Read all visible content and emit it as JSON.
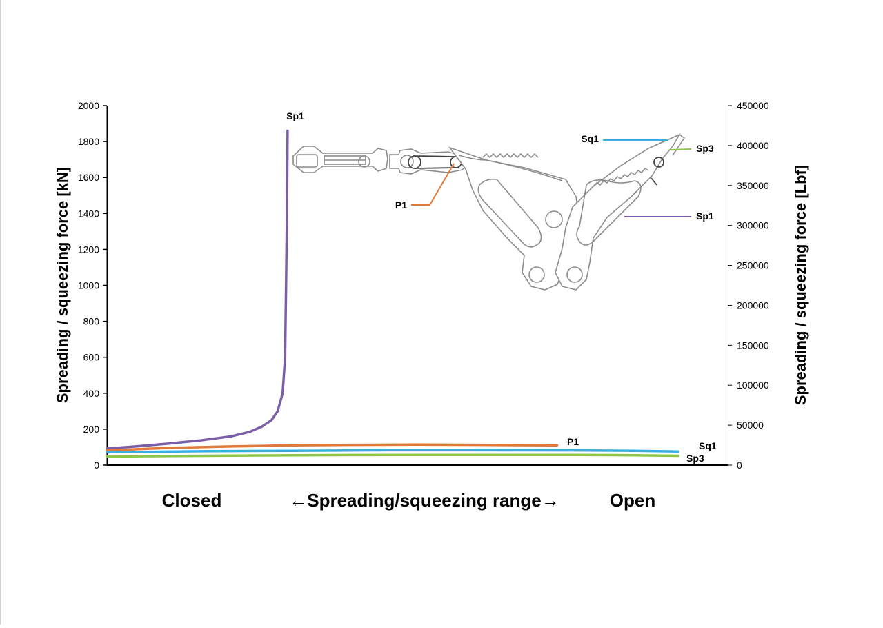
{
  "chart_data": {
    "type": "line",
    "left_axis": {
      "label": "Spreading / squeezing force [kN]",
      "ylim": [
        0,
        2000
      ],
      "ticks": [
        0,
        200,
        400,
        600,
        800,
        1000,
        1200,
        1400,
        1600,
        1800,
        2000
      ]
    },
    "right_axis": {
      "label": "Spreading / squeezing  force [Lbf]",
      "ylim": [
        0,
        450000
      ],
      "ticks": [
        0,
        50000,
        100000,
        150000,
        200000,
        250000,
        300000,
        350000,
        400000,
        450000
      ]
    },
    "x_axis": {
      "xlim": [
        0,
        100
      ],
      "labels": {
        "left": "Closed",
        "center": "←Spreading/squeezing range→",
        "right": "Open"
      }
    },
    "series": [
      {
        "name": "Sp1",
        "color": "#7b5ea7",
        "points": [
          [
            0,
            92
          ],
          [
            5,
            105
          ],
          [
            10,
            120
          ],
          [
            15,
            137
          ],
          [
            20,
            160
          ],
          [
            23,
            185
          ],
          [
            25,
            215
          ],
          [
            26.5,
            250
          ],
          [
            27.5,
            300
          ],
          [
            28.3,
            400
          ],
          [
            28.7,
            600
          ],
          [
            28.85,
            1000
          ],
          [
            29.0,
            1400
          ],
          [
            29.1,
            1860
          ]
        ]
      },
      {
        "name": "P1",
        "color": "#e07a3a",
        "points": [
          [
            0,
            82
          ],
          [
            10,
            96
          ],
          [
            20,
            104
          ],
          [
            30,
            110
          ],
          [
            40,
            113
          ],
          [
            50,
            114
          ],
          [
            60,
            113
          ],
          [
            68,
            111
          ],
          [
            72.5,
            110
          ]
        ]
      },
      {
        "name": "Sq1",
        "color": "#3aaee0",
        "points": [
          [
            0,
            72
          ],
          [
            15,
            77
          ],
          [
            30,
            80
          ],
          [
            45,
            83
          ],
          [
            60,
            83
          ],
          [
            75,
            82
          ],
          [
            85,
            80
          ],
          [
            92,
            76
          ]
        ]
      },
      {
        "name": "Sp3",
        "color": "#8ec44a",
        "points": [
          [
            0,
            48
          ],
          [
            20,
            53
          ],
          [
            40,
            56
          ],
          [
            60,
            57
          ],
          [
            75,
            57
          ],
          [
            85,
            55
          ],
          [
            92,
            52
          ]
        ]
      }
    ],
    "annotations": [
      "Sp1",
      "Sq1",
      "Sp3",
      "P1",
      "Sp1",
      "P1",
      "Sq1",
      "Sp3"
    ]
  }
}
